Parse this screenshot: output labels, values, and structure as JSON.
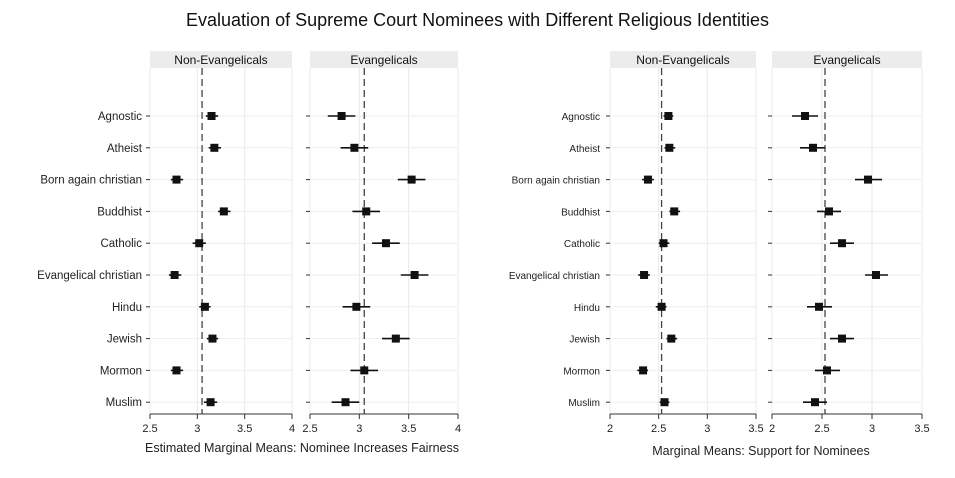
{
  "title": "Evaluation of Supreme Court Nominees with Different Religious Identities",
  "chart_data": [
    {
      "type": "dot-errorbar",
      "xlabel": "Estimated Marginal Means: Nominee Increases Fairness",
      "xlim": [
        2.5,
        4
      ],
      "xticks": [
        2.5,
        3,
        3.5,
        4
      ],
      "tick_labels": [
        "2.5",
        "3",
        "3.5",
        "4"
      ],
      "reference_line": 3.05,
      "categories": [
        "Agnostic",
        "Atheist",
        "Born again christian",
        "Buddhist",
        "Catholic",
        "Evangelical christian",
        "Hindu",
        "Jewish",
        "Mormon",
        "Muslim"
      ],
      "panels": [
        {
          "label": "Non-Evangelicals",
          "estimates": [
            3.15,
            3.18,
            2.78,
            3.28,
            3.02,
            2.76,
            3.08,
            3.16,
            2.78,
            3.14
          ],
          "lower": [
            3.09,
            3.12,
            2.72,
            3.22,
            2.95,
            2.7,
            3.02,
            3.1,
            2.72,
            3.07
          ],
          "upper": [
            3.22,
            3.25,
            2.85,
            3.35,
            3.09,
            2.83,
            3.14,
            3.22,
            2.85,
            3.21
          ]
        },
        {
          "label": "Evangelicals",
          "estimates": [
            2.82,
            2.95,
            3.53,
            3.07,
            3.27,
            3.56,
            2.97,
            3.37,
            3.05,
            2.86
          ],
          "lower": [
            2.68,
            2.81,
            3.39,
            2.93,
            3.13,
            3.42,
            2.83,
            3.23,
            2.91,
            2.72
          ],
          "upper": [
            2.96,
            3.09,
            3.67,
            3.21,
            3.41,
            3.7,
            3.11,
            3.51,
            3.19,
            3.0
          ]
        }
      ]
    },
    {
      "type": "dot-errorbar",
      "xlabel": "Marginal Means: Support for Nominees",
      "xlim": [
        2,
        3.5
      ],
      "xticks": [
        2,
        2.5,
        3,
        3.5
      ],
      "tick_labels": [
        "2",
        "2.5",
        "3",
        "3.5"
      ],
      "reference_line": 2.53,
      "categories": [
        "Agnostic",
        "Atheist",
        "Born again christian",
        "Buddhist",
        "Catholic",
        "Evangelical christian",
        "Hindu",
        "Jewish",
        "Mormon",
        "Muslim"
      ],
      "panels": [
        {
          "label": "Non-Evangelicals",
          "estimates": [
            2.6,
            2.61,
            2.39,
            2.66,
            2.55,
            2.35,
            2.53,
            2.63,
            2.34,
            2.56
          ],
          "lower": [
            2.55,
            2.56,
            2.33,
            2.61,
            2.5,
            2.29,
            2.47,
            2.58,
            2.28,
            2.51
          ],
          "upper": [
            2.65,
            2.67,
            2.45,
            2.72,
            2.61,
            2.41,
            2.58,
            2.69,
            2.39,
            2.61
          ]
        },
        {
          "label": "Evangelicals",
          "estimates": [
            2.33,
            2.41,
            2.96,
            2.57,
            2.7,
            3.04,
            2.47,
            2.7,
            2.55,
            2.43
          ],
          "lower": [
            2.2,
            2.28,
            2.83,
            2.45,
            2.58,
            2.93,
            2.35,
            2.58,
            2.43,
            2.31
          ],
          "upper": [
            2.46,
            2.53,
            3.1,
            2.69,
            2.82,
            3.16,
            2.6,
            2.82,
            2.68,
            2.55
          ]
        }
      ]
    }
  ]
}
